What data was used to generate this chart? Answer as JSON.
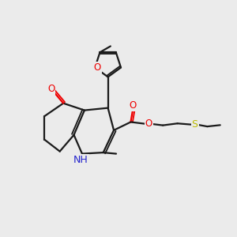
{
  "bg_color": "#ebebeb",
  "bond_color": "#1a1a1a",
  "oxygen_color": "#ee0000",
  "nitrogen_color": "#2222cc",
  "sulfur_color": "#bbbb00",
  "line_width": 1.6,
  "figsize": [
    3.0,
    3.0
  ],
  "dpi": 100,
  "xlim": [
    0,
    10
  ],
  "ylim": [
    0,
    10
  ]
}
